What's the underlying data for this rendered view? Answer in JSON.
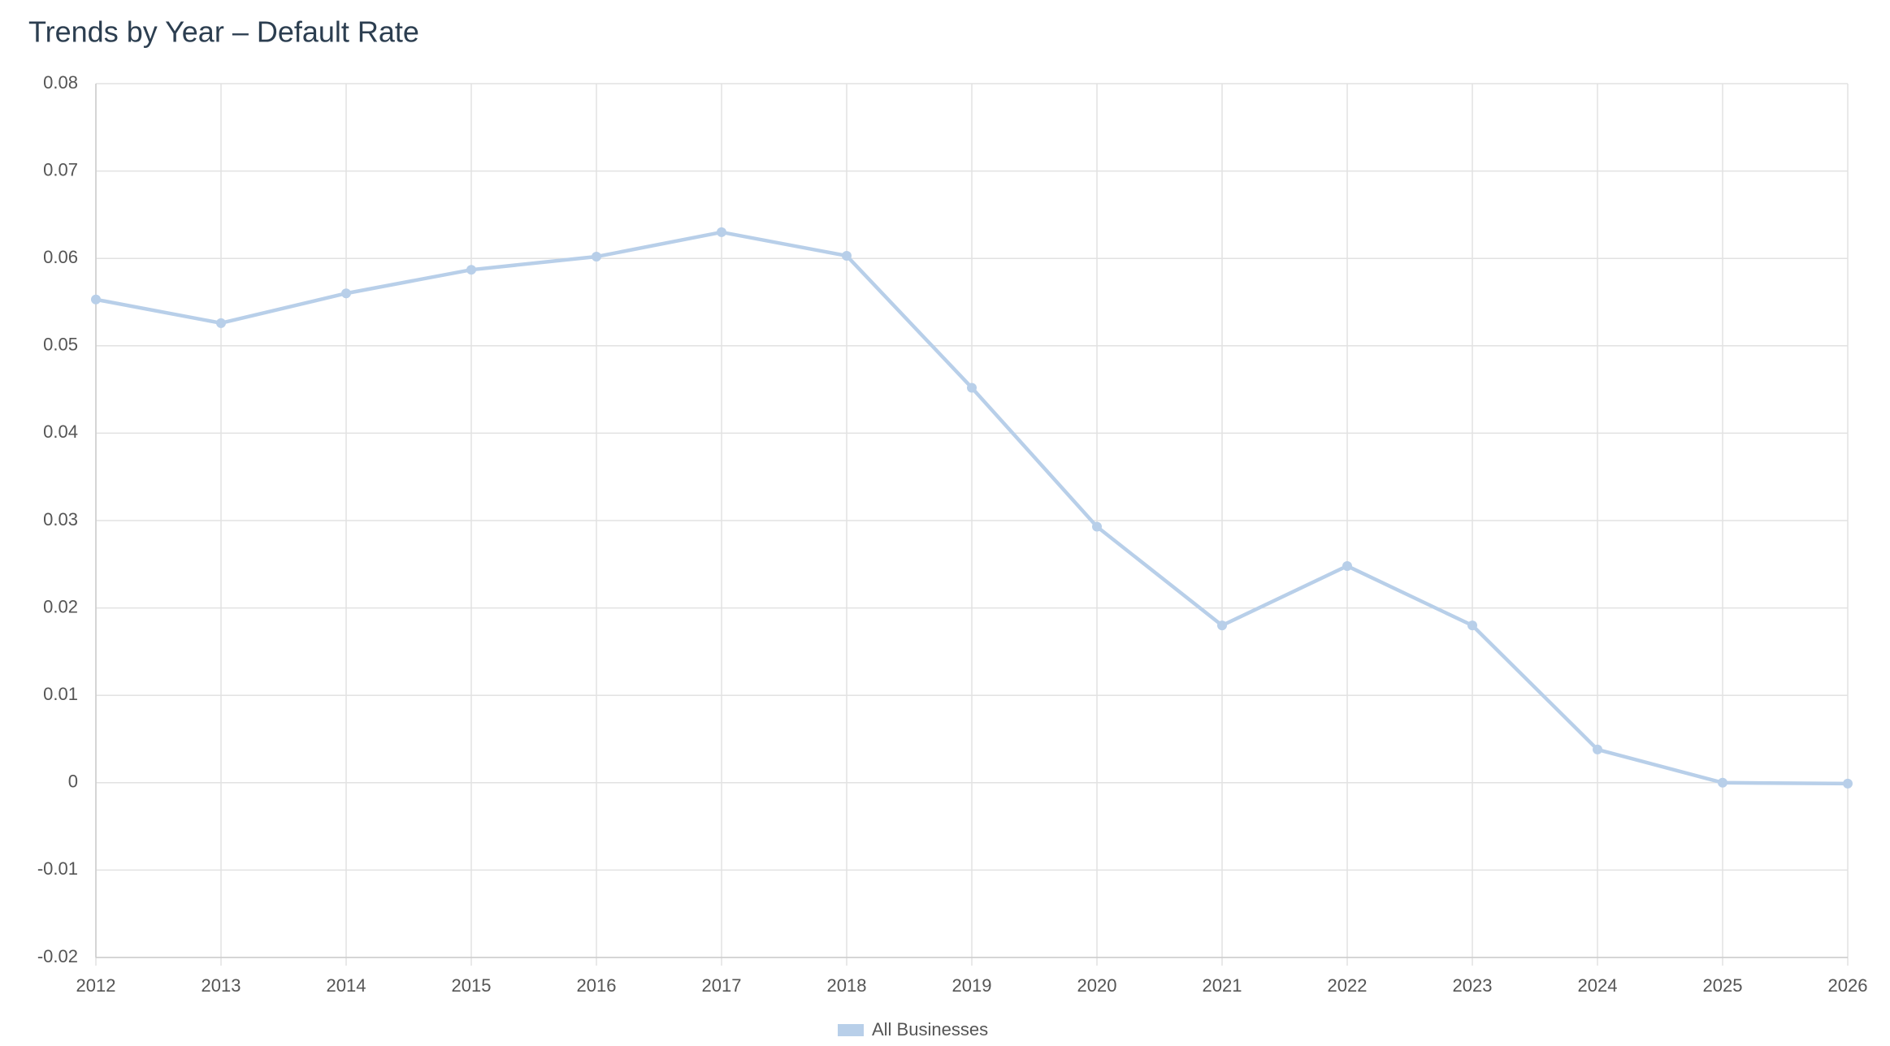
{
  "chart_data": {
    "type": "line",
    "title": "Trends by Year – Default Rate",
    "x": [
      2012,
      2013,
      2014,
      2015,
      2016,
      2017,
      2018,
      2019,
      2020,
      2021,
      2022,
      2023,
      2024,
      2025,
      2026
    ],
    "series": [
      {
        "name": "All Businesses",
        "color": "#b8cfe9",
        "values": [
          0.0553,
          0.0526,
          0.056,
          0.0587,
          0.0602,
          0.063,
          0.0603,
          0.0452,
          0.0293,
          0.018,
          0.0248,
          0.018,
          0.0038,
          0,
          -0.0001
        ]
      }
    ],
    "xlim": [
      2012,
      2026
    ],
    "xticks": [
      2012,
      2013,
      2014,
      2015,
      2016,
      2017,
      2018,
      2019,
      2020,
      2021,
      2022,
      2023,
      2024,
      2025,
      2026
    ],
    "ylim": [
      -0.02,
      0.08
    ],
    "yticks": [
      -0.02,
      -0.01,
      0,
      0.01,
      0.02,
      0.03,
      0.04,
      0.05,
      0.06,
      0.07,
      0.08
    ],
    "grid": true,
    "legend": "bottom"
  }
}
